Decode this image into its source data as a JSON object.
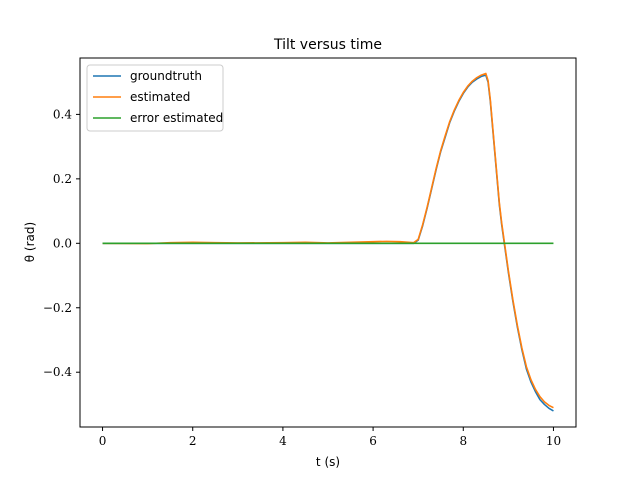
{
  "chart_data": {
    "type": "line",
    "title": "Tilt versus time",
    "xlabel": "t (s)",
    "ylabel": "θ (rad)",
    "xlim": [
      -0.5,
      10.5
    ],
    "ylim": [
      -0.57,
      0.575
    ],
    "xticks": [
      0,
      2,
      4,
      6,
      8,
      10
    ],
    "yticks": [
      -0.4,
      -0.2,
      0.0,
      0.2,
      0.4
    ],
    "xtick_labels": [
      "0",
      "2",
      "4",
      "6",
      "8",
      "10"
    ],
    "ytick_labels": [
      "−0.4",
      "−0.2",
      "0.0",
      "0.2",
      "0.4"
    ],
    "grid": false,
    "legend": {
      "placement": "top-left"
    },
    "series": [
      {
        "name": "groundtruth",
        "color": "#1f77b4",
        "x": [
          0,
          1,
          2,
          3,
          4,
          5,
          6,
          6.5,
          6.9,
          7.0,
          7.1,
          7.2,
          7.3,
          7.4,
          7.5,
          7.6,
          7.7,
          7.8,
          7.9,
          8.0,
          8.1,
          8.2,
          8.3,
          8.4,
          8.5,
          8.55,
          8.6,
          8.65,
          8.7,
          8.75,
          8.8,
          8.85,
          8.9,
          8.95,
          9.0,
          9.1,
          9.2,
          9.3,
          9.4,
          9.5,
          9.6,
          9.7,
          9.8,
          9.9,
          10.0
        ],
        "y": [
          0.0,
          0.0,
          0.0,
          0.0,
          0.0,
          0.0,
          0.0,
          0.0,
          0.0,
          0.01,
          0.055,
          0.11,
          0.17,
          0.23,
          0.285,
          0.33,
          0.375,
          0.41,
          0.44,
          0.465,
          0.485,
          0.5,
          0.51,
          0.518,
          0.522,
          0.5,
          0.44,
          0.36,
          0.28,
          0.2,
          0.12,
          0.06,
          0.01,
          -0.04,
          -0.09,
          -0.18,
          -0.26,
          -0.33,
          -0.39,
          -0.43,
          -0.46,
          -0.485,
          -0.5,
          -0.512,
          -0.52
        ]
      },
      {
        "name": "estimated",
        "color": "#ff7f0e",
        "x": [
          0,
          1,
          1.5,
          2,
          2.5,
          3,
          4,
          4.5,
          5,
          5.5,
          6,
          6.3,
          6.6,
          6.9,
          7.0,
          7.1,
          7.2,
          7.3,
          7.4,
          7.5,
          7.6,
          7.7,
          7.8,
          7.9,
          8.0,
          8.1,
          8.2,
          8.3,
          8.4,
          8.5,
          8.55,
          8.6,
          8.65,
          8.7,
          8.75,
          8.8,
          8.85,
          8.9,
          8.95,
          9.0,
          9.1,
          9.2,
          9.3,
          9.4,
          9.5,
          9.6,
          9.7,
          9.8,
          9.9,
          10.0
        ],
        "y": [
          0.0,
          -0.001,
          0.002,
          0.003,
          0.002,
          0.001,
          0.002,
          0.003,
          0.001,
          0.003,
          0.005,
          0.006,
          0.005,
          0.002,
          0.012,
          0.058,
          0.113,
          0.173,
          0.233,
          0.288,
          0.334,
          0.378,
          0.413,
          0.443,
          0.468,
          0.488,
          0.503,
          0.514,
          0.522,
          0.527,
          0.505,
          0.445,
          0.365,
          0.285,
          0.205,
          0.125,
          0.065,
          0.015,
          -0.035,
          -0.085,
          -0.175,
          -0.255,
          -0.325,
          -0.383,
          -0.423,
          -0.453,
          -0.476,
          -0.492,
          -0.503,
          -0.51
        ]
      },
      {
        "name": "error estimated",
        "color": "#2ca02c",
        "x": [
          0,
          10
        ],
        "y": [
          0.0,
          0.0
        ]
      }
    ]
  }
}
